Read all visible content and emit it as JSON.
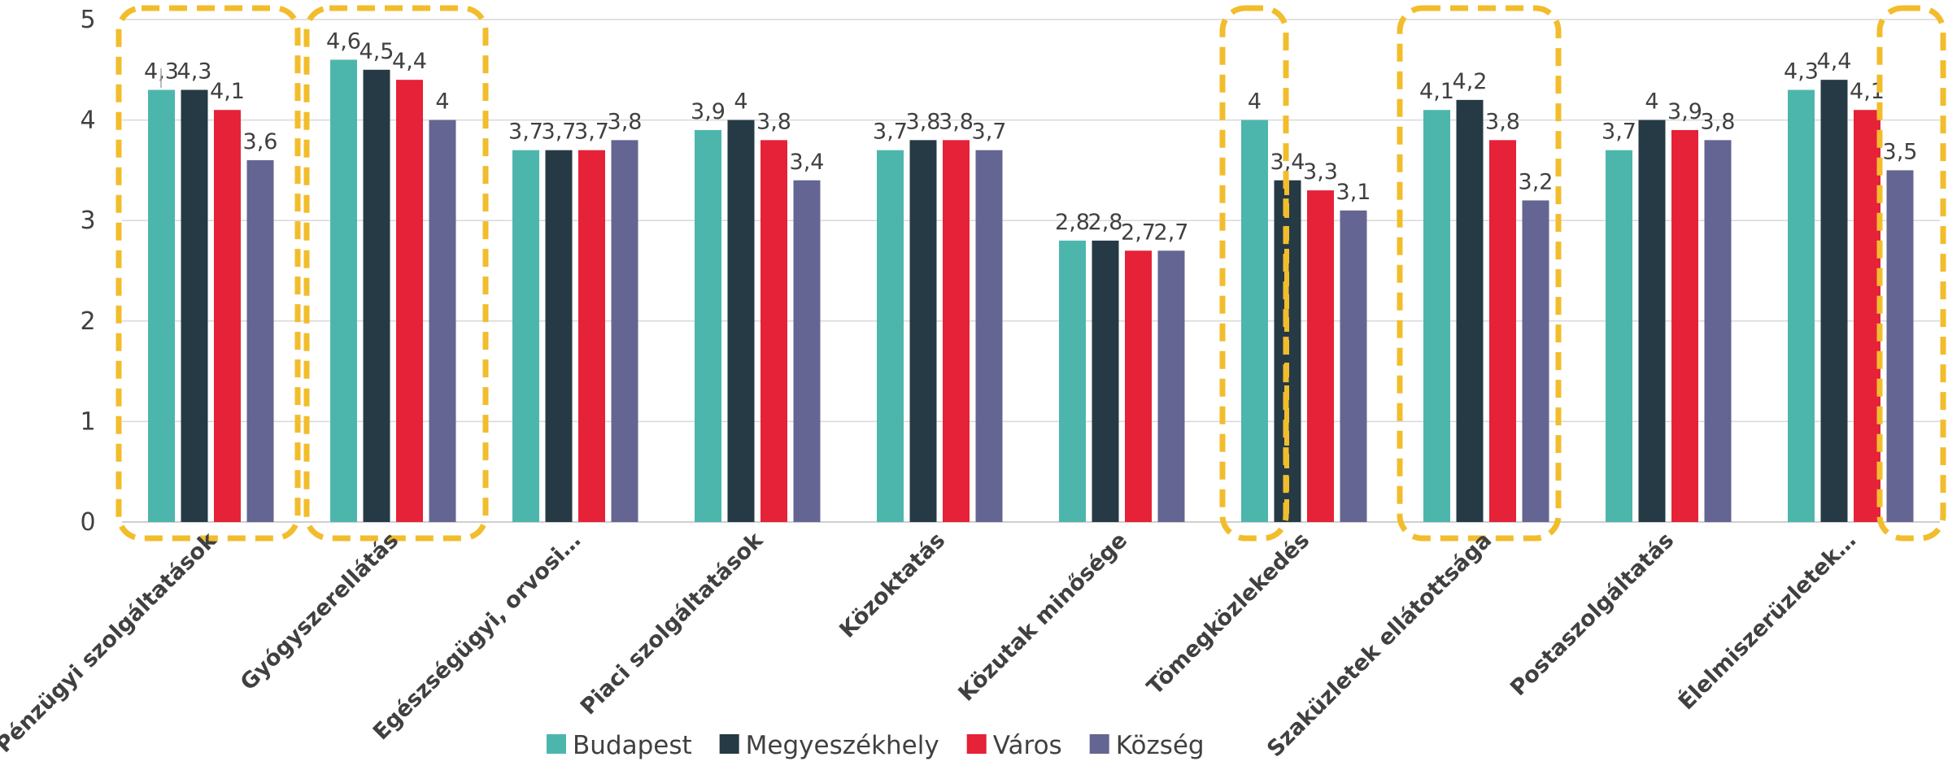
{
  "chart_data": {
    "type": "bar",
    "categories": [
      "Pénzügyi szolgáltatások",
      "Gyógyszerellátás",
      "Egészségügyi, orvosi…",
      "Piaci szolgáltatások",
      "Közoktatás",
      "Közutak minősége",
      "Tömegközlekedés",
      "Szaküzletek ellátottsága",
      "Postaszolgáltatás",
      "Élelmiszerüzletek…"
    ],
    "series": [
      {
        "name": "Budapest",
        "color": "#4db6ac",
        "values": [
          4.3,
          4.6,
          3.7,
          3.9,
          3.7,
          2.8,
          4.0,
          4.1,
          3.7,
          4.3
        ],
        "labels": [
          "4,3",
          "4,6",
          "3,7",
          "3,9",
          "3,7",
          "2,8",
          "4",
          "4,1",
          "3,7",
          "4,3"
        ]
      },
      {
        "name": "Megyeszékhely",
        "color": "#263a45",
        "values": [
          4.3,
          4.5,
          3.7,
          4.0,
          3.8,
          2.8,
          3.4,
          4.2,
          4.0,
          4.4
        ],
        "labels": [
          "4,3",
          "4,5",
          "3,7",
          "4",
          "3,8",
          "2,8",
          "3,4",
          "4,2",
          "4",
          "4,4"
        ]
      },
      {
        "name": "Város",
        "color": "#e52237",
        "values": [
          4.1,
          4.4,
          3.7,
          3.8,
          3.8,
          2.7,
          3.3,
          3.8,
          3.9,
          4.1
        ],
        "labels": [
          "4,1",
          "4,4",
          "3,7",
          "3,8",
          "3,8",
          "2,7",
          "3,3",
          "3,8",
          "3,9",
          "4,1"
        ]
      },
      {
        "name": "Község",
        "color": "#646592",
        "values": [
          3.6,
          4.0,
          3.8,
          3.4,
          3.7,
          2.7,
          3.1,
          3.2,
          3.8,
          3.5
        ],
        "labels": [
          "3,6",
          "4",
          "3,8",
          "3,4",
          "3,7",
          "2,7",
          "3,1",
          "3,2",
          "3,8",
          "3,5"
        ]
      }
    ],
    "ylim": [
      0,
      5
    ],
    "yticks": [
      "0",
      "1",
      "2",
      "3",
      "4",
      "5"
    ],
    "grid": true,
    "legend_position": "bottom",
    "highlight_color": "#f2bd2c"
  }
}
